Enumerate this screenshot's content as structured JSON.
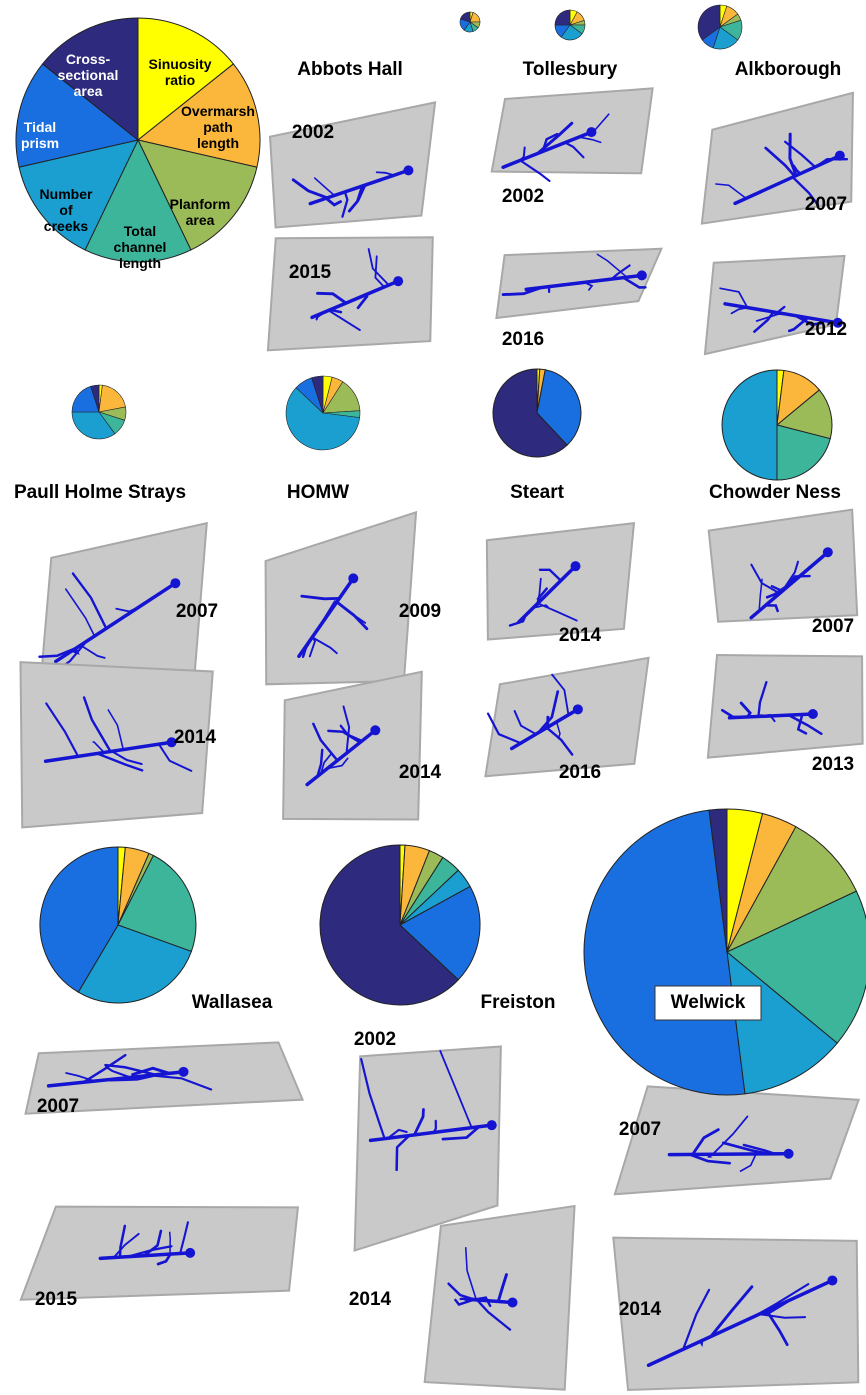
{
  "chart_data": [
    {
      "type": "pie",
      "categories": [
        "Sinuosity\nratio",
        "Overmarsh\npath\nlength",
        "Planform\narea",
        "Total\nchannel\nlength",
        "Number\nof\ncreeks",
        "Tidal\nprism",
        "Cross-\nsectional\narea"
      ],
      "colors": [
        "#ffff00",
        "#fbb73c",
        "#9bbb59",
        "#3cb59b",
        "#1a9fd0",
        "#1a6fe0",
        "#2e2a7e"
      ],
      "values": [
        14.3,
        14.3,
        14.3,
        14.3,
        14.3,
        14.3,
        14.3
      ]
    },
    {
      "type": "pie",
      "title": "Abbots Hall",
      "values": [
        5,
        20,
        10,
        10,
        15,
        20,
        20
      ],
      "maps": [
        "2002",
        "2015"
      ]
    },
    {
      "type": "pie",
      "title": "Tollesbury",
      "values": [
        8,
        12,
        5,
        10,
        25,
        15,
        25
      ],
      "maps": [
        "2002",
        "2016"
      ]
    },
    {
      "type": "pie",
      "title": "Alkborough",
      "values": [
        5,
        10,
        5,
        15,
        20,
        10,
        35
      ],
      "maps": [
        "2007",
        "2012"
      ]
    },
    {
      "type": "pie",
      "title": "Paull Holme Strays",
      "values": [
        2,
        20,
        8,
        10,
        35,
        20,
        5
      ],
      "maps": [
        "2007",
        "2014"
      ]
    },
    {
      "type": "pie",
      "title": "HOMW",
      "values": [
        4,
        5,
        15,
        3,
        60,
        8,
        5
      ],
      "maps": [
        "2009",
        "2014"
      ]
    },
    {
      "type": "pie",
      "title": "Steart",
      "values": [
        1,
        2,
        0,
        0,
        0,
        35,
        62
      ],
      "maps": [
        "2014",
        "2016"
      ]
    },
    {
      "type": "pie",
      "title": "Chowder Ness",
      "values": [
        2,
        12,
        15,
        21,
        50,
        0,
        0
      ],
      "maps": [
        "2007",
        "2013"
      ]
    },
    {
      "type": "pie",
      "title": "Wallasea",
      "values": [
        1.5,
        5,
        1,
        23,
        28,
        41.5,
        0
      ],
      "maps": [
        "2007",
        "2015"
      ]
    },
    {
      "type": "pie",
      "title": "Freiston",
      "values": [
        1,
        5,
        3,
        4,
        4,
        20,
        63
      ],
      "maps": [
        "2002",
        "2014"
      ]
    },
    {
      "type": "pie",
      "title": "Welwick",
      "values": [
        4,
        4,
        10,
        18,
        12,
        50,
        2
      ],
      "maps": [
        "2007",
        "2014"
      ]
    }
  ]
}
